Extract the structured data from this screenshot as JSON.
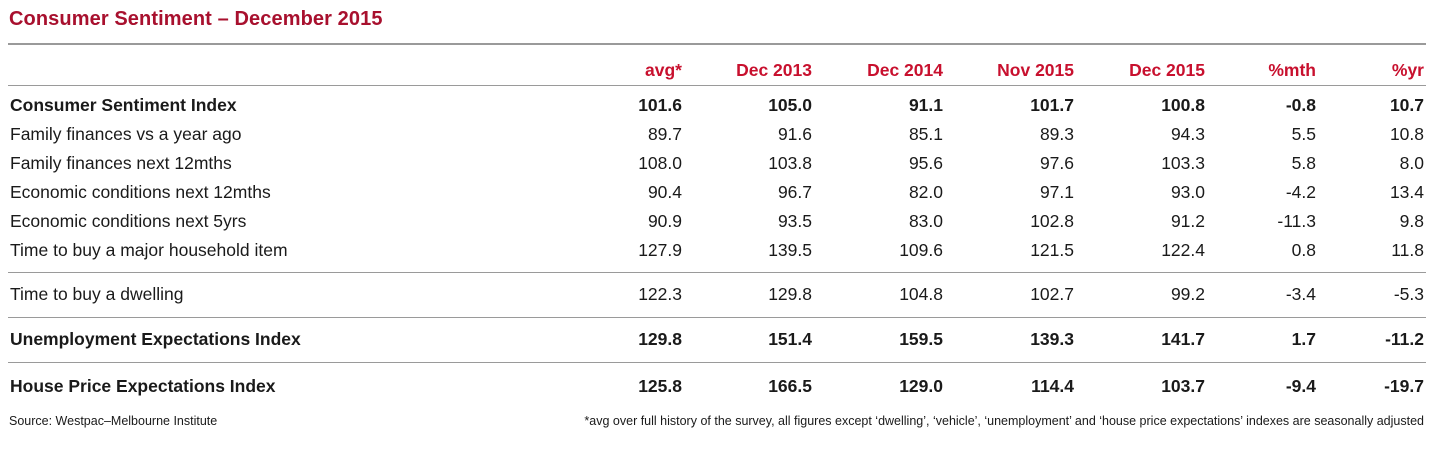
{
  "title": "Consumer Sentiment – December 2015",
  "columns": [
    "avg*",
    "Dec 2013",
    "Dec 2014",
    "Nov 2015",
    "Dec 2015",
    "%mth",
    "%yr"
  ],
  "rows": [
    {
      "label": "Consumer Sentiment Index",
      "values": [
        "101.6",
        "105.0",
        "91.1",
        "101.7",
        "100.8",
        "-0.8",
        "10.7"
      ],
      "bold": true
    },
    {
      "label": "Family finances vs a year ago",
      "values": [
        "89.7",
        "91.6",
        "85.1",
        "89.3",
        "94.3",
        "5.5",
        "10.8"
      ],
      "bold": false
    },
    {
      "label": "Family finances next 12mths",
      "values": [
        "108.0",
        "103.8",
        "95.6",
        "97.6",
        "103.3",
        "5.8",
        "8.0"
      ],
      "bold": false
    },
    {
      "label": "Economic conditions next 12mths",
      "values": [
        "90.4",
        "96.7",
        "82.0",
        "97.1",
        "93.0",
        "-4.2",
        "13.4"
      ],
      "bold": false
    },
    {
      "label": "Economic conditions next 5yrs",
      "values": [
        "90.9",
        "93.5",
        "83.0",
        "102.8",
        "91.2",
        "-11.3",
        "9.8"
      ],
      "bold": false
    },
    {
      "label": "Time to buy a major household item",
      "values": [
        "127.9",
        "139.5",
        "109.6",
        "121.5",
        "122.4",
        "0.8",
        "11.8"
      ],
      "bold": false
    },
    {
      "label": "Time to buy a dwelling",
      "values": [
        "122.3",
        "129.8",
        "104.8",
        "102.7",
        "99.2",
        "-3.4",
        "-5.3"
      ],
      "bold": false
    },
    {
      "label": "Unemployment Expectations Index",
      "values": [
        "129.8",
        "151.4",
        "159.5",
        "139.3",
        "141.7",
        "1.7",
        "-11.2"
      ],
      "bold": true
    },
    {
      "label": "House Price Expectations Index",
      "values": [
        "125.8",
        "166.5",
        "129.0",
        "114.4",
        "103.7",
        "-9.4",
        "-19.7"
      ],
      "bold": true
    }
  ],
  "footer": {
    "source": "Source: Westpac–Melbourne Institute",
    "note": "*avg over full history of the survey, all figures except ‘dwelling’, ‘vehicle’, ‘unemployment’ and ‘house price expectations’ indexes are seasonally adjusted"
  },
  "colors": {
    "title": "#a8102e",
    "header": "#c8102e",
    "rules": "#9a9a9a"
  }
}
